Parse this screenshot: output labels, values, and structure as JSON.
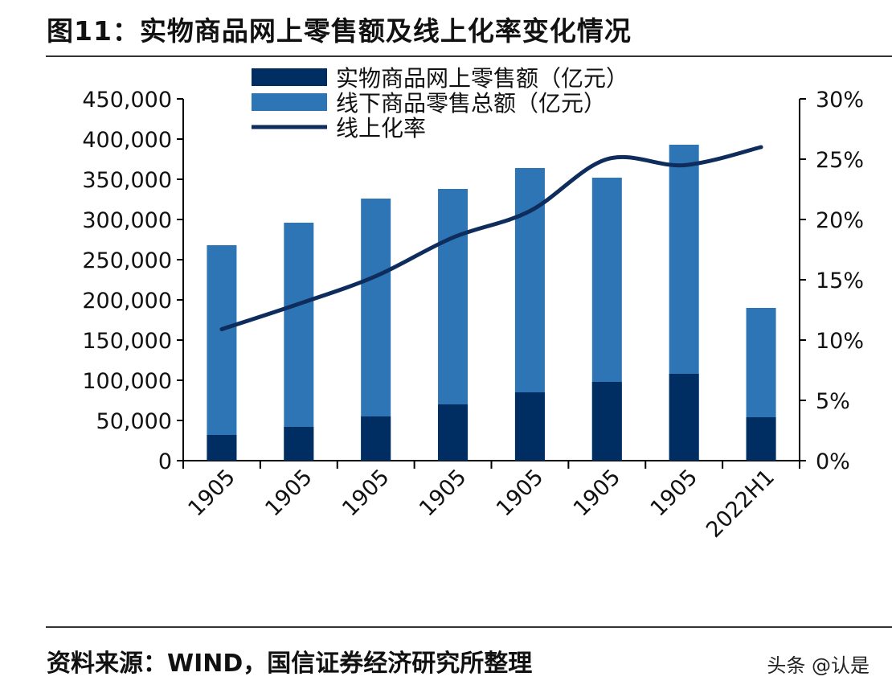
{
  "title": "图11：实物商品网上零售额及线上化率变化情况",
  "source": "资料来源：WIND，国信证券经济研究所整理",
  "watermark": "头条 @认是",
  "colors": {
    "online": "#002E63",
    "offline": "#2E75B6",
    "rate": "#0F2D5C"
  },
  "chart_data": {
    "type": "bar",
    "categories": [
      "1905",
      "1905",
      "1905",
      "1905",
      "1905",
      "1905",
      "1905",
      "2022H1"
    ],
    "series": [
      {
        "name": "实物商品网上零售额（亿元）",
        "type": "bar",
        "axis": "left",
        "values": [
          32000,
          42000,
          55000,
          70000,
          85000,
          98000,
          108000,
          54000
        ]
      },
      {
        "name": "线下商品零售总额（亿元）",
        "type": "bar",
        "axis": "left",
        "values": [
          268000,
          296000,
          326000,
          338000,
          364000,
          352000,
          393000,
          190000
        ]
      },
      {
        "name": "线上化率",
        "type": "line",
        "axis": "right",
        "values": [
          10.9,
          13.0,
          15.3,
          18.5,
          20.7,
          25.0,
          24.5,
          26.0
        ]
      }
    ],
    "ylim": [
      0,
      450000
    ],
    "yticks": [
      "0",
      "50,000",
      "100,000",
      "150,000",
      "200,000",
      "250,000",
      "300,000",
      "350,000",
      "400,000",
      "450,000"
    ],
    "y2lim": [
      0,
      30
    ],
    "y2ticks": [
      "0%",
      "5%",
      "10%",
      "15%",
      "20%",
      "25%",
      "30%"
    ],
    "legend": "top-left",
    "grid": false
  }
}
